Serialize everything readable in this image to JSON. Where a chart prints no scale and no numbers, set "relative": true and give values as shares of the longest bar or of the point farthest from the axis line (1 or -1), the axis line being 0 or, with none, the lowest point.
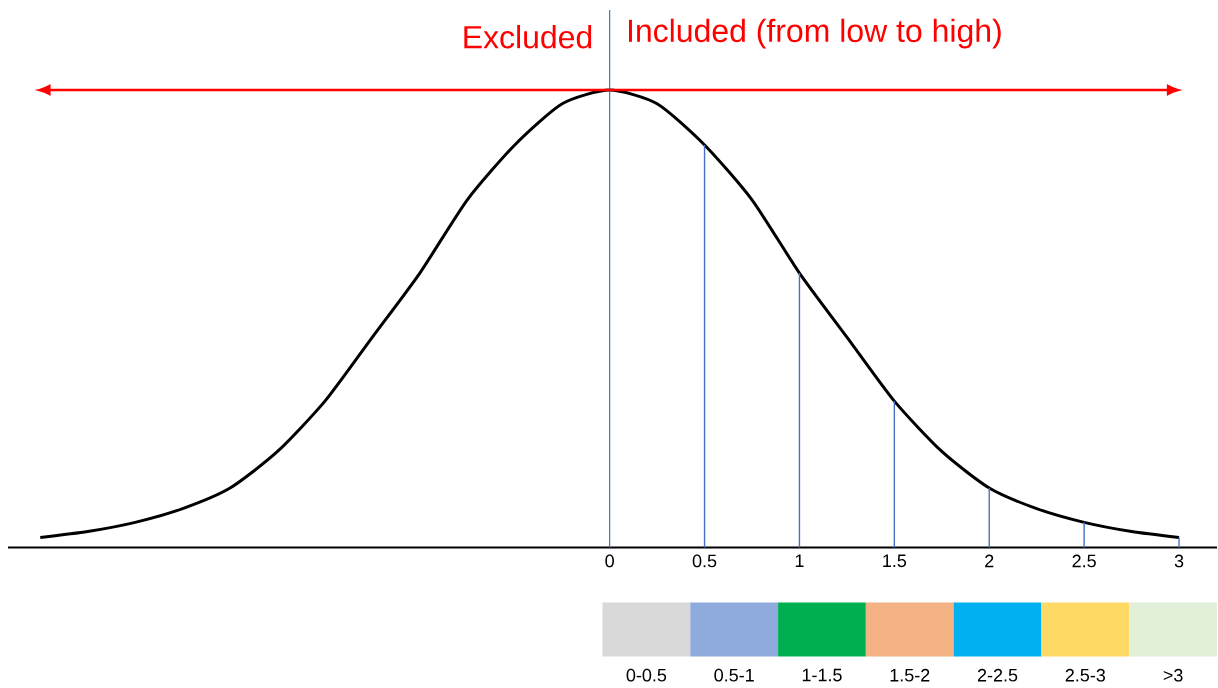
{
  "chart_data": [
    {
      "type": "line",
      "relative": true,
      "marker": "none",
      "tick_labels": "x",
      "annotations": [
        "Excluded",
        "Included (from low to high)"
      ],
      "xlim": [
        -3.17,
        3.2
      ],
      "xticks": [
        0,
        0.5,
        1,
        1.5,
        2,
        2.5,
        3
      ],
      "ref_lines": [
        {
          "axis": "x",
          "value": 0,
          "color": "#4472c4"
        }
      ],
      "series": [
        {
          "color": "#000000",
          "x": [
            -3,
            -2.75,
            -2.5,
            -2.25,
            -2,
            -1.75,
            -1.5,
            -1.25,
            -1,
            -0.75,
            -0.5,
            -0.25,
            0,
            0.25,
            0.5,
            0.75,
            1,
            1.25,
            1.5,
            1.75,
            2,
            2.25,
            2.5,
            2.75,
            3
          ],
          "values": [
            0.022,
            0.035,
            0.055,
            0.085,
            0.13,
            0.21,
            0.32,
            0.46,
            0.6,
            0.76,
            0.88,
            0.97,
            1,
            0.97,
            0.88,
            0.76,
            0.6,
            0.46,
            0.32,
            0.21,
            0.13,
            0.085,
            0.055,
            0.035,
            0.022
          ]
        },
        {
          "type": "bar",
          "color": "#4472c4",
          "x": [
            0.5,
            1,
            1.5,
            2,
            2.5,
            3
          ],
          "values": [
            0.88,
            0.6,
            0.32,
            0.13,
            0.055,
            0.022
          ]
        }
      ]
    },
    {
      "type": "other",
      "categories": [
        "0-0.5",
        "0.5-1",
        "1-1.5",
        "1.5-2",
        "2-2.5",
        "2.5-3",
        ">3"
      ],
      "colors": [
        "#d9d9d9",
        "#8faadc",
        "#00b050",
        "#f4b183",
        "#00b0f0",
        "#ffd966",
        "#e2f0d9"
      ]
    }
  ]
}
